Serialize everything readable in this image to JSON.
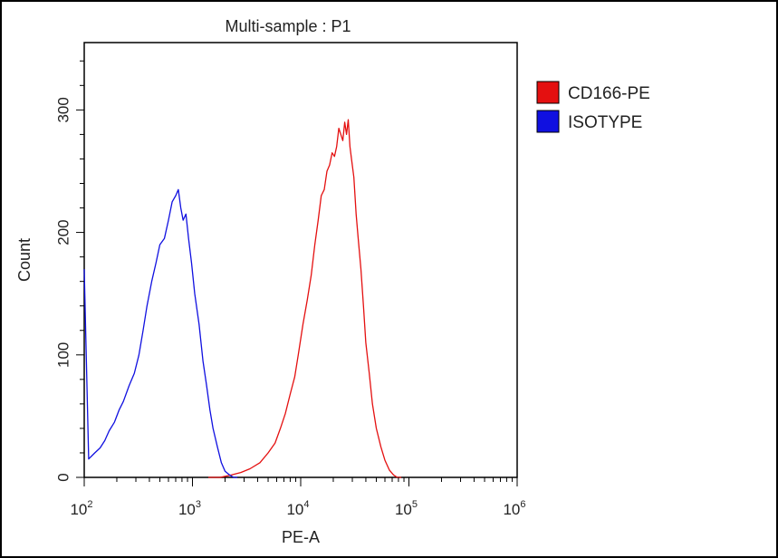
{
  "chart_data": {
    "type": "line",
    "title": "Multi-sample : P1",
    "xlabel": "PE-A",
    "ylabel": "Count",
    "xscale": "log",
    "xlim": [
      100,
      1000000
    ],
    "ylim": [
      0,
      355
    ],
    "x_ticks": [
      {
        "base": "10",
        "exp": "2",
        "value": 100
      },
      {
        "base": "10",
        "exp": "3",
        "value": 1000
      },
      {
        "base": "10",
        "exp": "4",
        "value": 10000
      },
      {
        "base": "10",
        "exp": "5",
        "value": 100000
      },
      {
        "base": "10",
        "exp": "6",
        "value": 1000000
      }
    ],
    "y_ticks": [
      "0",
      "100",
      "200",
      "300"
    ],
    "y_tick_values": [
      0,
      100,
      200,
      300
    ],
    "legend_placement": "right",
    "grid": false,
    "series": [
      {
        "name": "CD166-PE",
        "color": "#e41010",
        "x": [
          1400,
          1800,
          2300,
          2800,
          3400,
          4200,
          5000,
          5800,
          6500,
          7200,
          8000,
          8800,
          9500,
          10500,
          11500,
          12500,
          13500,
          14500,
          15500,
          16500,
          17500,
          18500,
          19500,
          20500,
          21500,
          22500,
          23500,
          24500,
          25500,
          26500,
          27500,
          28500,
          29500,
          31000,
          32500,
          34000,
          36000,
          38000,
          40000,
          43000,
          46000,
          50000,
          55000,
          60000,
          66000,
          72000,
          78000,
          85000
        ],
        "y": [
          0,
          0,
          2,
          4,
          7,
          12,
          20,
          28,
          40,
          52,
          68,
          82,
          100,
          125,
          145,
          165,
          190,
          210,
          230,
          235,
          250,
          255,
          265,
          262,
          270,
          285,
          280,
          275,
          290,
          280,
          292,
          270,
          260,
          245,
          215,
          195,
          170,
          140,
          110,
          85,
          60,
          40,
          25,
          14,
          6,
          2,
          0,
          0
        ]
      },
      {
        "name": "ISOTYPE",
        "color": "#1010e0",
        "x": [
          100,
          110,
          125,
          140,
          155,
          170,
          190,
          210,
          230,
          260,
          290,
          320,
          350,
          380,
          420,
          460,
          500,
          550,
          600,
          650,
          700,
          740,
          780,
          820,
          870,
          920,
          980,
          1050,
          1150,
          1250,
          1350,
          1450,
          1550,
          1700,
          1850,
          2000,
          2200,
          2400,
          2600
        ],
        "y": [
          170,
          15,
          20,
          24,
          30,
          38,
          45,
          55,
          62,
          75,
          85,
          100,
          120,
          140,
          160,
          175,
          190,
          195,
          210,
          225,
          230,
          235,
          220,
          210,
          215,
          195,
          175,
          150,
          125,
          95,
          75,
          55,
          40,
          25,
          12,
          5,
          2,
          0,
          0
        ]
      }
    ]
  }
}
